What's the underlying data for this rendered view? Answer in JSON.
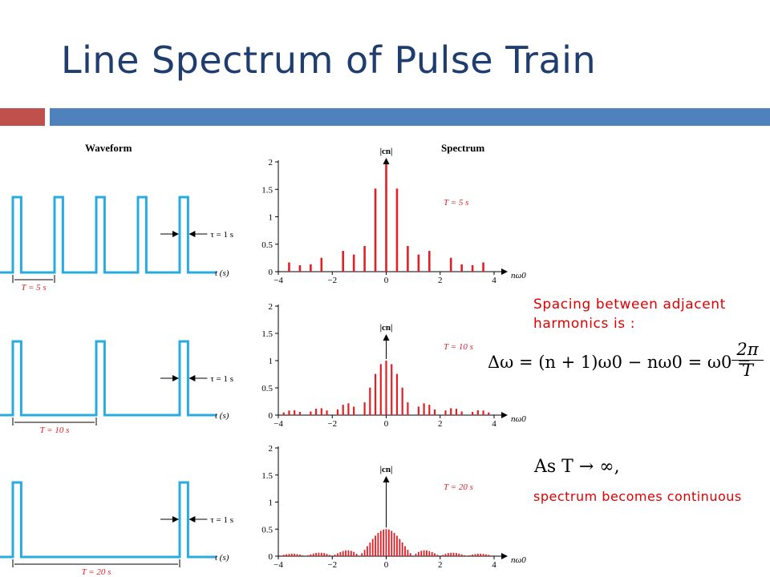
{
  "slide": {
    "title": "Line Spectrum of Pulse Train",
    "accent_red": "#c0504d",
    "accent_blue": "#4f81bd"
  },
  "waveform": {
    "heading": "Waveform",
    "tau_label": "τ = 1 s",
    "time_label": "t (s)",
    "color": "#29abe2",
    "rows": [
      {
        "period_label": "T = 5 s",
        "period": 5
      },
      {
        "period_label": "T = 10 s",
        "period": 10
      },
      {
        "period_label": "T = 20 s",
        "period": 20
      }
    ]
  },
  "spectrum": {
    "heading": "Spectrum",
    "ylabel": "|cn|",
    "xlabel": "nω0",
    "color": "#e31e24"
  },
  "chart_data": [
    {
      "type": "bar",
      "title": "T = 5 s",
      "xlabel": "nω0",
      "ylabel": "|cn|",
      "xlim": [
        -4,
        4
      ],
      "ylim": [
        0,
        2
      ],
      "xticks": [
        -4,
        -2,
        0,
        2,
        4
      ],
      "yticks": [
        0,
        0.5,
        1,
        1.5,
        2
      ],
      "spacing": 0.4,
      "peak": 2.0,
      "tau": 1
    },
    {
      "type": "bar",
      "title": "T = 10 s",
      "xlabel": "nω0",
      "ylabel": "|cn|",
      "xlim": [
        -4,
        4
      ],
      "ylim": [
        0,
        2
      ],
      "xticks": [
        -4,
        -2,
        0,
        2,
        4
      ],
      "yticks": [
        0,
        0.5,
        1,
        1.5,
        2
      ],
      "spacing": 0.2,
      "peak": 1.0,
      "tau": 1
    },
    {
      "type": "bar",
      "title": "T = 20 s",
      "xlabel": "nω0",
      "ylabel": "|cn|",
      "xlim": [
        -4,
        4
      ],
      "ylim": [
        0,
        2
      ],
      "xticks": [
        -4,
        -2,
        0,
        2,
        4
      ],
      "yticks": [
        0,
        0.5,
        1,
        1.5,
        2
      ],
      "spacing": 0.1,
      "peak": 0.5,
      "tau": 1
    }
  ],
  "notes": {
    "spacing_line1": "Spacing between adjacent",
    "spacing_line2": "harmonics is :",
    "eq_delta": "Δω = (n + 1)ω0 − nω0 = ω0 =",
    "eq_numer": "2π",
    "eq_denom": "T",
    "eq_limit": "As T → ∞,",
    "continuous": "spectrum becomes continuous"
  }
}
